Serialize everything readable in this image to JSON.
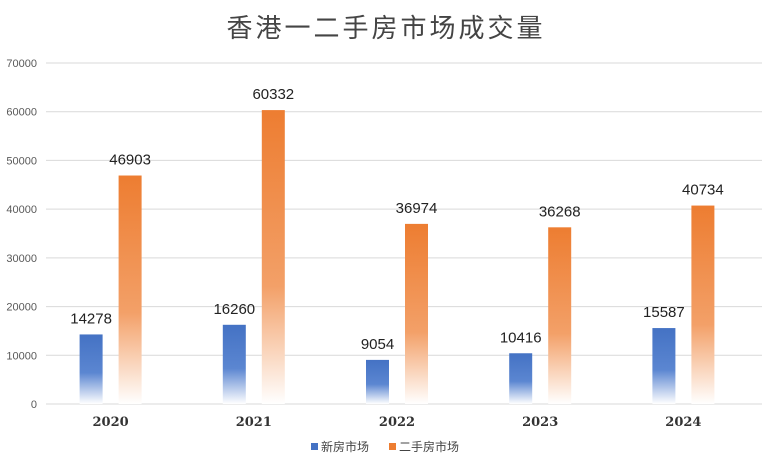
{
  "chart_data": {
    "type": "bar",
    "title": "香港一二手房市场成交量",
    "categories": [
      "2020",
      "2021",
      "2022",
      "2023",
      "2024"
    ],
    "series": [
      {
        "name": "新房市场",
        "values": [
          14278,
          16260,
          9054,
          10416,
          15587
        ],
        "color": "#4472C4"
      },
      {
        "name": "二手房市场",
        "values": [
          46903,
          60332,
          36974,
          36268,
          40734
        ],
        "color": "#ED7D31"
      }
    ],
    "yticks": [
      "0",
      "10000",
      "20000",
      "30000",
      "40000",
      "50000",
      "60000",
      "70000"
    ],
    "ylim": [
      0,
      70000
    ],
    "grid": true,
    "legend": "bottom-center",
    "xlabel": "",
    "ylabel": ""
  }
}
